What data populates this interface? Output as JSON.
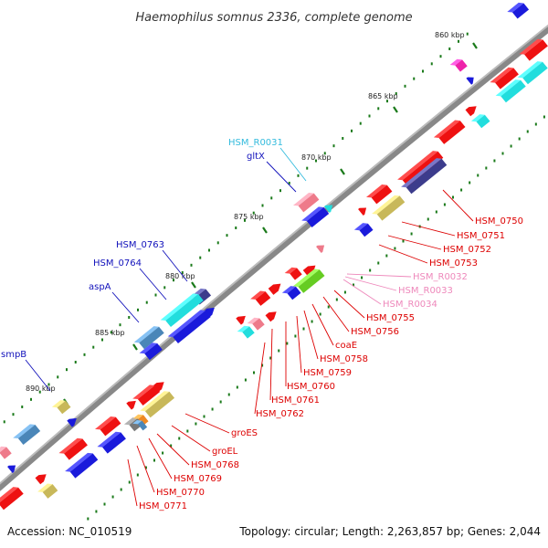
{
  "title": "Haemophilus somnus 2336, complete genome",
  "footer": {
    "accession": "Accession: NC_010519",
    "summary": "Topology: circular; Length: 2,263,857 bp; Genes: 2,044"
  },
  "colors": {
    "backbone": "#888888",
    "tick_mark": "#1a7a1a",
    "gene_forward": "#ee1111",
    "gene_reverse_blue": "#1a1adb",
    "gene_cyan": "#22dddd",
    "gene_steelblue": "#4a86b8",
    "gene_navy": "#3c3c8c",
    "gene_khaki": "#c8b85a",
    "gene_pink": "#ee7a8a",
    "gene_magenta": "#ee22aa",
    "gene_green": "#66cc22",
    "gene_gray": "#777777",
    "gene_orange": "#ee8822",
    "label_red": "#dd0000",
    "label_pink": "#ee88bb",
    "label_cyan": "#33bbdd",
    "label_blue": "#1111bb"
  },
  "ticks": [
    {
      "label": "860 kbp"
    },
    {
      "label": "865 kbp"
    },
    {
      "label": "870 kbp"
    },
    {
      "label": "875 kbp"
    },
    {
      "label": "880 kbp"
    },
    {
      "label": "885 kbp"
    },
    {
      "label": "890 kbp"
    }
  ],
  "gene_labels": [
    {
      "name": "HSM_R0031",
      "color": "label_cyan"
    },
    {
      "name": "gltX",
      "color": "label_blue"
    },
    {
      "name": "HSM_0763",
      "color": "label_blue"
    },
    {
      "name": "HSM_0764",
      "color": "label_blue"
    },
    {
      "name": "aspA",
      "color": "label_blue"
    },
    {
      "name": "smpB",
      "color": "label_blue"
    },
    {
      "name": "HSM_0750",
      "color": "label_red"
    },
    {
      "name": "HSM_0751",
      "color": "label_red"
    },
    {
      "name": "HSM_0752",
      "color": "label_red"
    },
    {
      "name": "HSM_0753",
      "color": "label_red"
    },
    {
      "name": "HSM_R0032",
      "color": "label_pink"
    },
    {
      "name": "HSM_R0033",
      "color": "label_pink"
    },
    {
      "name": "HSM_R0034",
      "color": "label_pink"
    },
    {
      "name": "HSM_0755",
      "color": "label_red"
    },
    {
      "name": "HSM_0756",
      "color": "label_red"
    },
    {
      "name": "coaE",
      "color": "label_red"
    },
    {
      "name": "HSM_0758",
      "color": "label_red"
    },
    {
      "name": "HSM_0759",
      "color": "label_red"
    },
    {
      "name": "HSM_0760",
      "color": "label_red"
    },
    {
      "name": "HSM_0761",
      "color": "label_red"
    },
    {
      "name": "HSM_0762",
      "color": "label_red"
    },
    {
      "name": "groES",
      "color": "label_red"
    },
    {
      "name": "groEL",
      "color": "label_red"
    },
    {
      "name": "HSM_0768",
      "color": "label_red"
    },
    {
      "name": "HSM_0769",
      "color": "label_red"
    },
    {
      "name": "HSM_0770",
      "color": "label_red"
    },
    {
      "name": "HSM_0771",
      "color": "label_red"
    }
  ]
}
